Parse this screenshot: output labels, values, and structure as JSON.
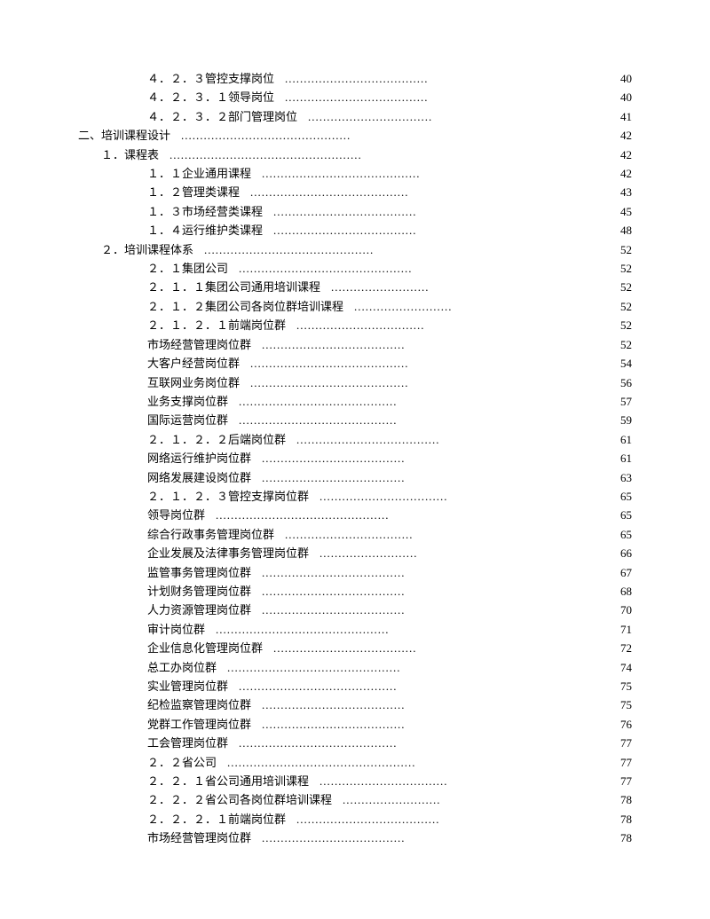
{
  "lines": [
    {
      "indent": 2,
      "title": "４．２．３管控支撑岗位",
      "dots": "......................................",
      "page": "40"
    },
    {
      "indent": 2,
      "title": "４．２．３．１领导岗位",
      "dots": "......................................",
      "page": "40"
    },
    {
      "indent": 2,
      "title": "４．２．３．２部门管理岗位",
      "dots": ".................................",
      "page": "41"
    },
    {
      "indent": 0,
      "title": "二、培训课程设计",
      "dots": ".............................................",
      "page": "42"
    },
    {
      "indent": 1,
      "title": "１．课程表",
      "dots": "...................................................",
      "page": "42"
    },
    {
      "indent": 2,
      "title": "１．１企业通用课程",
      "dots": "..........................................",
      "page": "42"
    },
    {
      "indent": 2,
      "title": "１．２管理类课程",
      "dots": "..........................................",
      "page": "43"
    },
    {
      "indent": 2,
      "title": "１．３市场经营类课程",
      "dots": "......................................",
      "page": "45"
    },
    {
      "indent": 2,
      "title": "１．４运行维护类课程",
      "dots": "......................................",
      "page": "48"
    },
    {
      "indent": 1,
      "title": "２．培训课程体系",
      "dots": ".............................................",
      "page": "52"
    },
    {
      "indent": 2,
      "title": "２．１集团公司",
      "dots": "..............................................",
      "page": "52"
    },
    {
      "indent": 2,
      "title": "２．１．１集团公司通用培训课程",
      "dots": "..........................",
      "page": "52"
    },
    {
      "indent": 2,
      "title": "２．１．２集团公司各岗位群培训课程",
      "dots": "..........................",
      "page": "52"
    },
    {
      "indent": 2,
      "title": "２．１．２．１前端岗位群",
      "dots": "..................................",
      "page": "52"
    },
    {
      "indent": 3,
      "title": "市场经营管理岗位群",
      "dots": "......................................",
      "page": "52"
    },
    {
      "indent": 3,
      "title": "大客户经营岗位群",
      "dots": "..........................................",
      "page": "54"
    },
    {
      "indent": 3,
      "title": "互联网业务岗位群",
      "dots": "..........................................",
      "page": "56"
    },
    {
      "indent": 3,
      "title": "业务支撑岗位群",
      "dots": "..........................................",
      "page": "57"
    },
    {
      "indent": 3,
      "title": "国际运营岗位群",
      "dots": "..........................................",
      "page": "59"
    },
    {
      "indent": 2,
      "title": "２．１．２．２后端岗位群",
      "dots": "......................................",
      "page": "61"
    },
    {
      "indent": 3,
      "title": "网络运行维护岗位群",
      "dots": "......................................",
      "page": "61"
    },
    {
      "indent": 3,
      "title": "网络发展建设岗位群",
      "dots": "......................................",
      "page": "63"
    },
    {
      "indent": 2,
      "title": "２．１．２．３管控支撑岗位群",
      "dots": "..................................",
      "page": "65"
    },
    {
      "indent": 3,
      "title": "领导岗位群",
      "dots": "..............................................",
      "page": "65"
    },
    {
      "indent": 3,
      "title": "综合行政事务管理岗位群",
      "dots": "..................................",
      "page": "65"
    },
    {
      "indent": 3,
      "title": "企业发展及法律事务管理岗位群",
      "dots": "..........................",
      "page": "66"
    },
    {
      "indent": 3,
      "title": "监管事务管理岗位群",
      "dots": "......................................",
      "page": "67"
    },
    {
      "indent": 3,
      "title": "计划财务管理岗位群",
      "dots": "......................................",
      "page": "68"
    },
    {
      "indent": 3,
      "title": "人力资源管理岗位群",
      "dots": "......................................",
      "page": "70"
    },
    {
      "indent": 3,
      "title": "审计岗位群",
      "dots": "..............................................",
      "page": "71"
    },
    {
      "indent": 3,
      "title": "企业信息化管理岗位群",
      "dots": "......................................",
      "page": "72"
    },
    {
      "indent": 3,
      "title": "总工办岗位群",
      "dots": "..............................................",
      "page": "74"
    },
    {
      "indent": 3,
      "title": "实业管理岗位群",
      "dots": "..........................................",
      "page": "75"
    },
    {
      "indent": 3,
      "title": "纪检监察管理岗位群",
      "dots": "......................................",
      "page": "75"
    },
    {
      "indent": 3,
      "title": "党群工作管理岗位群",
      "dots": "......................................",
      "page": "76"
    },
    {
      "indent": 3,
      "title": "工会管理岗位群",
      "dots": "..........................................",
      "page": "77"
    },
    {
      "indent": 2,
      "title": "２．２省公司",
      "dots": "..................................................",
      "page": "77"
    },
    {
      "indent": 2,
      "title": "２．２．１省公司通用培训课程",
      "dots": "..................................",
      "page": "77"
    },
    {
      "indent": 2,
      "title": "２．２．２省公司各岗位群培训课程",
      "dots": "..........................",
      "page": "78"
    },
    {
      "indent": 2,
      "title": "２．２．２．１前端岗位群",
      "dots": "......................................",
      "page": "78"
    },
    {
      "indent": 3,
      "title": "市场经营管理岗位群",
      "dots": "......................................",
      "page": "78"
    }
  ],
  "colors": {
    "background": "#ffffff",
    "text": "#000000"
  },
  "typography": {
    "fontsize": 13,
    "lineheight": 21.4,
    "family": "SimSun"
  }
}
